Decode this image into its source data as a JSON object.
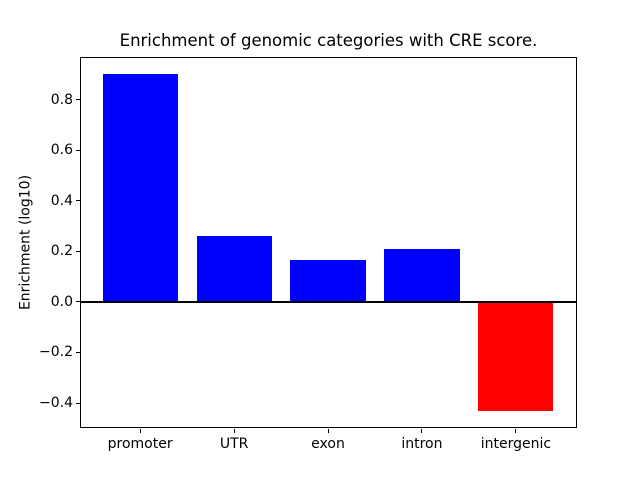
{
  "figure": {
    "background": "#ffffff"
  },
  "chart_data": {
    "type": "bar",
    "title": "Enrichment of genomic categories with CRE score.",
    "xlabel": "",
    "ylabel": "Enrichment (log10)",
    "categories": [
      "promoter",
      "UTR",
      "exon",
      "intron",
      "intergenic"
    ],
    "values": [
      0.9,
      0.26,
      0.165,
      0.21,
      -0.43
    ],
    "bar_colors": [
      "#0000ff",
      "#0000ff",
      "#0000ff",
      "#0000ff",
      "#ff0000"
    ],
    "positive_color": "#0000ff",
    "negative_color": "#ff0000",
    "ylim": [
      -0.497,
      0.967
    ],
    "yticks": [
      -0.4,
      -0.2,
      0.0,
      0.2,
      0.4,
      0.6,
      0.8
    ],
    "ytick_labels": [
      "−0.4",
      "−0.2",
      "0.0",
      "0.2",
      "0.4",
      "0.6",
      "0.8"
    ],
    "bar_width_fraction": 0.8,
    "x_margin_fraction": 0.05,
    "grid": false,
    "legend": null,
    "zero_line_color": "#000000",
    "axis_color": "#000000",
    "text_color": "#000000"
  }
}
